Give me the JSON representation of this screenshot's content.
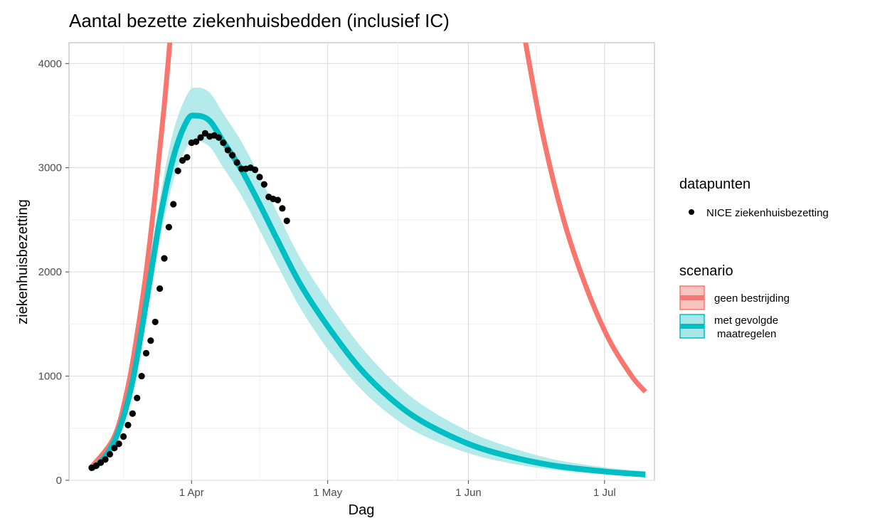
{
  "chart_data": {
    "type": "line",
    "title": "Aantal bezette ziekenhuisbedden (inclusief IC)",
    "xlabel": "Dag",
    "ylabel": "ziekenhuisbezetting",
    "ylim": [
      0,
      4200
    ],
    "xlim": [
      "2020-03-05",
      "2020-07-12"
    ],
    "y_ticks": [
      0,
      1000,
      2000,
      3000,
      4000
    ],
    "x_ticks": [
      {
        "date": "2020-04-01",
        "label": "1 Apr"
      },
      {
        "date": "2020-05-01",
        "label": "1 May"
      },
      {
        "date": "2020-06-01",
        "label": "1 Jun"
      },
      {
        "date": "2020-07-01",
        "label": "1 Jul"
      }
    ],
    "grid": true,
    "legend": {
      "placement": "right",
      "groups": [
        {
          "title": "datapunten",
          "entries": [
            "NICE ziekenhuisbezetting"
          ]
        },
        {
          "title": "scenario",
          "entries": [
            "geen bestrijding",
            "met gevolgde",
            "maatregelen"
          ]
        }
      ]
    },
    "colors": {
      "geen_bestrijding": "#f8766d",
      "maatregelen": "#00bfc4",
      "band": "#a8e6e8",
      "points": "#000000"
    },
    "series": [
      {
        "name": "geen bestrijding",
        "kind": "line",
        "x": [
          "2020-03-10",
          "2020-03-15",
          "2020-03-18",
          "2020-03-20",
          "2020-03-22",
          "2020-03-24",
          "2020-03-26",
          "2020-03-28",
          "2020-06-12",
          "2020-06-17",
          "2020-06-22",
          "2020-06-27",
          "2020-07-02",
          "2020-07-07",
          "2020-07-10"
        ],
        "y": [
          130,
          420,
          900,
          1400,
          2000,
          2750,
          3600,
          4600,
          4600,
          3400,
          2500,
          1850,
          1350,
          1000,
          850
        ]
      },
      {
        "name": "met gevolgde maatregelen",
        "kind": "line",
        "x": [
          "2020-03-10",
          "2020-03-13",
          "2020-03-16",
          "2020-03-19",
          "2020-03-22",
          "2020-03-25",
          "2020-03-28",
          "2020-03-31",
          "2020-04-02",
          "2020-04-05",
          "2020-04-08",
          "2020-04-12",
          "2020-04-16",
          "2020-04-20",
          "2020-04-25",
          "2020-05-01",
          "2020-05-08",
          "2020-05-15",
          "2020-05-22",
          "2020-06-01",
          "2020-06-10",
          "2020-06-20",
          "2020-07-01",
          "2020-07-10"
        ],
        "y": [
          110,
          230,
          480,
          950,
          1700,
          2500,
          3100,
          3450,
          3500,
          3450,
          3250,
          2980,
          2650,
          2300,
          1880,
          1480,
          1080,
          780,
          560,
          350,
          230,
          140,
          85,
          55
        ],
        "lower": [
          100,
          210,
          430,
          850,
          1550,
          2300,
          2880,
          3200,
          3260,
          3200,
          3000,
          2730,
          2400,
          2060,
          1650,
          1260,
          890,
          620,
          430,
          260,
          165,
          100,
          60,
          38
        ],
        "upper": [
          125,
          250,
          530,
          1050,
          1850,
          2700,
          3350,
          3700,
          3770,
          3720,
          3520,
          3250,
          2920,
          2560,
          2130,
          1720,
          1300,
          970,
          720,
          470,
          320,
          200,
          125,
          85
        ]
      },
      {
        "name": "NICE ziekenhuisbezetting",
        "kind": "scatter",
        "x": [
          "2020-03-10",
          "2020-03-11",
          "2020-03-12",
          "2020-03-13",
          "2020-03-14",
          "2020-03-15",
          "2020-03-16",
          "2020-03-17",
          "2020-03-18",
          "2020-03-19",
          "2020-03-20",
          "2020-03-21",
          "2020-03-22",
          "2020-03-23",
          "2020-03-24",
          "2020-03-25",
          "2020-03-26",
          "2020-03-27",
          "2020-03-28",
          "2020-03-29",
          "2020-03-30",
          "2020-03-31",
          "2020-04-01",
          "2020-04-02",
          "2020-04-03",
          "2020-04-04",
          "2020-04-05",
          "2020-04-06",
          "2020-04-07",
          "2020-04-08",
          "2020-04-09",
          "2020-04-10",
          "2020-04-11",
          "2020-04-12",
          "2020-04-13",
          "2020-04-14",
          "2020-04-15",
          "2020-04-16",
          "2020-04-17",
          "2020-04-18",
          "2020-04-19",
          "2020-04-20",
          "2020-04-21",
          "2020-04-22"
        ],
        "y": [
          120,
          140,
          170,
          200,
          250,
          310,
          350,
          420,
          530,
          640,
          790,
          1000,
          1220,
          1340,
          1520,
          1840,
          2130,
          2430,
          2650,
          2970,
          3070,
          3100,
          3240,
          3250,
          3290,
          3330,
          3300,
          3310,
          3290,
          3240,
          3170,
          3120,
          3050,
          2990,
          2990,
          3000,
          2980,
          2910,
          2840,
          2720,
          2700,
          2690,
          2610,
          2490
        ]
      }
    ]
  }
}
